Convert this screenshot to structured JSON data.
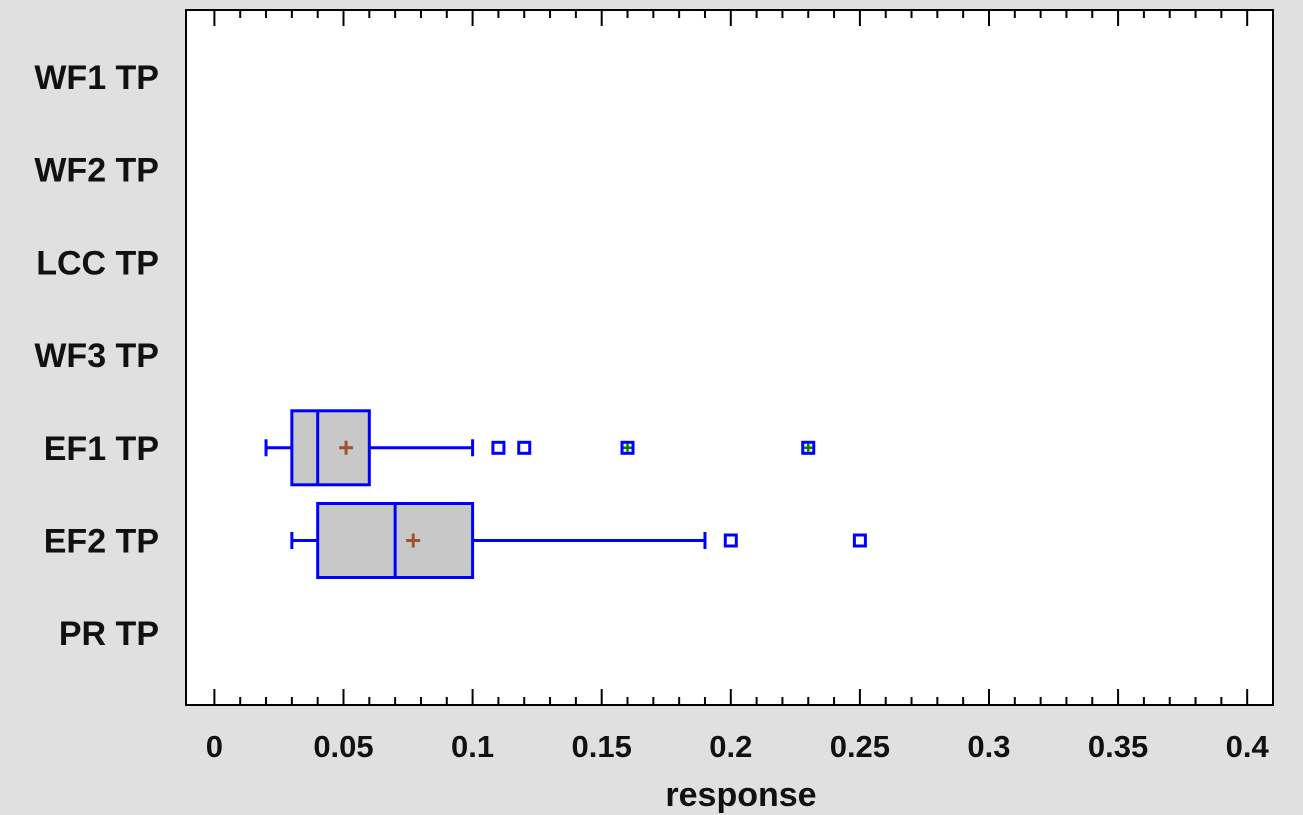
{
  "chart_data": {
    "type": "boxplot",
    "orientation": "horizontal",
    "title": "",
    "xlabel": "response",
    "ylabel": "",
    "xlim": [
      -0.011,
      0.41
    ],
    "x_ticks": [
      0,
      0.05,
      0.1,
      0.15,
      0.2,
      0.25,
      0.3,
      0.35,
      0.4
    ],
    "x_tick_labels": [
      "0",
      "0.05",
      "0.1",
      "0.15",
      "0.2",
      "0.25",
      "0.3",
      "0.35",
      "0.4"
    ],
    "grid": false,
    "categories": [
      "WF1 TP",
      "WF2 TP",
      "LCC TP",
      "WF3 TP",
      "EF1 TP",
      "EF2 TP",
      "PR TP"
    ],
    "boxes": [
      {
        "category": "EF1 TP",
        "whisker_low": 0.02,
        "q1": 0.03,
        "median": 0.04,
        "q3": 0.06,
        "whisker_high": 0.1,
        "mean": 0.051,
        "outliers": [
          0.11,
          0.12
        ],
        "far_outliers": [
          0.16,
          0.23
        ]
      },
      {
        "category": "EF2 TP",
        "whisker_low": 0.03,
        "q1": 0.04,
        "median": 0.07,
        "q3": 0.1,
        "whisker_high": 0.19,
        "mean": 0.077,
        "outliers": [
          0.2,
          0.25
        ],
        "far_outliers": []
      }
    ],
    "colors": {
      "box_fill": "#c8c8c8",
      "box_stroke": "#0000ff",
      "mean_marker": "#a0522d",
      "far_outlier_cross": "#008000",
      "plot_bg": "#ffffff",
      "page_bg": "#e0e0e0"
    }
  }
}
